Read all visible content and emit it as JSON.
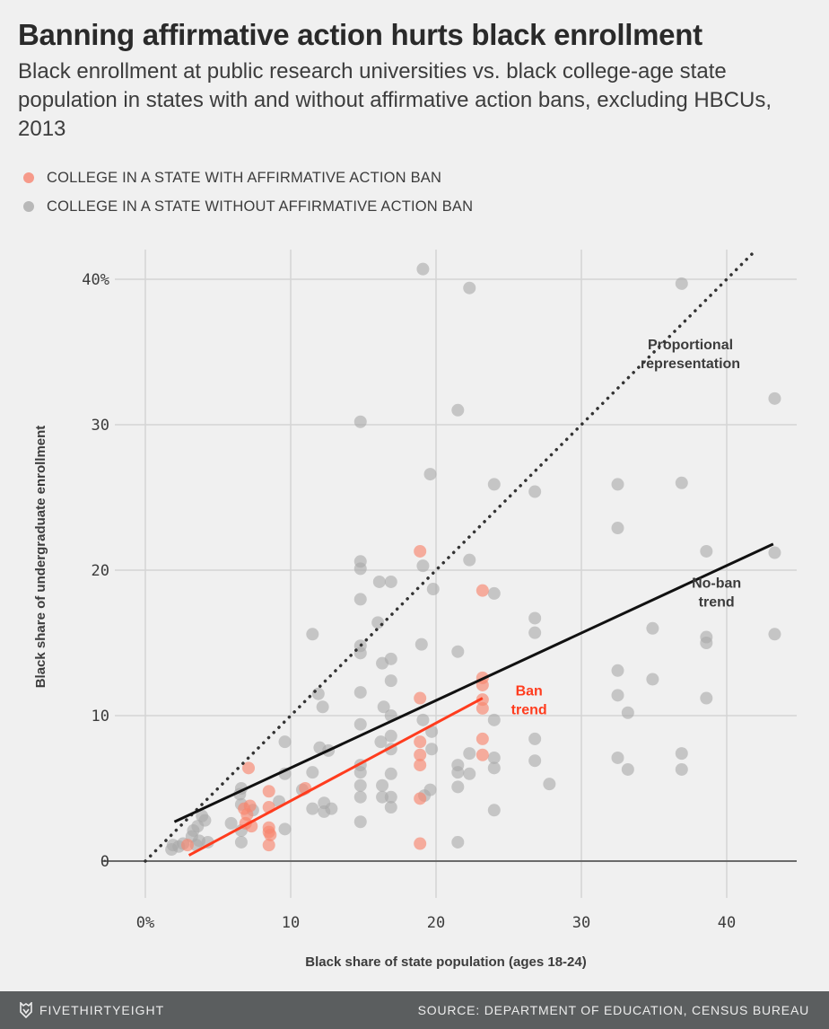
{
  "header": {
    "title": "Banning affirmative action hurts black enrollment",
    "subtitle": "Black enrollment at public research universities vs. black college-age state population in states with and without affirmative action bans, excluding HBCUs, 2013"
  },
  "legend": [
    {
      "label": "COLLEGE IN A STATE WITH AFFIRMATIVE ACTION BAN",
      "color": "#f69a8a"
    },
    {
      "label": "COLLEGE IN A STATE WITHOUT AFFIRMATIVE ACTION BAN",
      "color": "#b8b8b8"
    }
  ],
  "footer": {
    "brand": "FIVETHIRTYEIGHT",
    "source": "SOURCE: DEPARTMENT OF EDUCATION, CENSUS BUREAU"
  },
  "colors": {
    "ban": "#ff3c1e",
    "ban_point": "#f8866f",
    "noban_point": "#a9a9a9",
    "noban_trend": "#111111",
    "grid": "#d4d4d4",
    "text": "#3c3c3c"
  },
  "chart_data": {
    "type": "scatter",
    "title": "Banning affirmative action hurts black enrollment",
    "xlabel": "Black share of state population (ages 18-24)",
    "ylabel": "Black share of undergraduate enrollment",
    "xlim": [
      -2,
      45
    ],
    "ylim": [
      -3,
      42
    ],
    "x_ticks": [
      0,
      10,
      20,
      30,
      40
    ],
    "x_tick_labels": [
      "0%",
      "10",
      "20",
      "30",
      "40"
    ],
    "y_ticks": [
      0,
      10,
      20,
      30,
      40
    ],
    "y_tick_labels": [
      "0",
      "10",
      "20",
      "30",
      "40%"
    ],
    "grid": true,
    "legend_position": "top-left",
    "series": [
      {
        "name": "College in a state with affirmative action ban",
        "points": [
          [
            2.9,
            1.1
          ],
          [
            7.1,
            6.4
          ],
          [
            6.8,
            3.6
          ],
          [
            7.0,
            3.2
          ],
          [
            7.2,
            3.8
          ],
          [
            6.9,
            2.6
          ],
          [
            7.3,
            2.4
          ],
          [
            8.5,
            4.8
          ],
          [
            8.5,
            3.7
          ],
          [
            8.5,
            2.3
          ],
          [
            8.5,
            2.0
          ],
          [
            8.6,
            1.8
          ],
          [
            8.5,
            1.1
          ],
          [
            11.0,
            5.0
          ],
          [
            18.9,
            21.3
          ],
          [
            18.9,
            11.2
          ],
          [
            18.9,
            8.2
          ],
          [
            18.9,
            7.3
          ],
          [
            18.9,
            6.6
          ],
          [
            18.9,
            4.3
          ],
          [
            18.9,
            1.2
          ],
          [
            23.2,
            18.6
          ],
          [
            23.2,
            12.6
          ],
          [
            23.2,
            12.1
          ],
          [
            23.2,
            11.1
          ],
          [
            23.2,
            10.5
          ],
          [
            23.2,
            8.4
          ],
          [
            23.2,
            7.3
          ]
        ]
      },
      {
        "name": "College in a state without affirmative action ban",
        "points": [
          [
            1.8,
            0.8
          ],
          [
            1.9,
            1.1
          ],
          [
            2.3,
            1.0
          ],
          [
            2.6,
            1.2
          ],
          [
            3.2,
            1.7
          ],
          [
            3.3,
            2.1
          ],
          [
            3.6,
            2.4
          ],
          [
            3.7,
            1.4
          ],
          [
            3.9,
            3.1
          ],
          [
            4.1,
            2.8
          ],
          [
            4.3,
            1.3
          ],
          [
            3.5,
            1.1
          ],
          [
            5.9,
            2.6
          ],
          [
            6.5,
            4.6
          ],
          [
            6.6,
            5.0
          ],
          [
            6.6,
            3.9
          ],
          [
            6.6,
            2.1
          ],
          [
            6.6,
            1.3
          ],
          [
            7.4,
            3.5
          ],
          [
            9.2,
            4.1
          ],
          [
            9.6,
            8.2
          ],
          [
            9.6,
            6.0
          ],
          [
            9.6,
            2.2
          ],
          [
            10.8,
            4.9
          ],
          [
            11.5,
            15.6
          ],
          [
            11.5,
            6.1
          ],
          [
            11.9,
            11.5
          ],
          [
            12.0,
            7.8
          ],
          [
            12.2,
            10.6
          ],
          [
            12.3,
            4.0
          ],
          [
            12.3,
            3.4
          ],
          [
            12.6,
            7.6
          ],
          [
            12.8,
            3.6
          ],
          [
            11.5,
            3.6
          ],
          [
            14.8,
            30.2
          ],
          [
            14.8,
            20.6
          ],
          [
            14.8,
            20.1
          ],
          [
            14.8,
            18.0
          ],
          [
            14.8,
            14.8
          ],
          [
            14.8,
            14.3
          ],
          [
            14.8,
            11.6
          ],
          [
            14.8,
            9.4
          ],
          [
            14.8,
            6.6
          ],
          [
            14.8,
            6.1
          ],
          [
            14.8,
            5.2
          ],
          [
            14.8,
            4.4
          ],
          [
            14.8,
            2.7
          ],
          [
            16.1,
            19.2
          ],
          [
            16.0,
            16.4
          ],
          [
            16.2,
            8.2
          ],
          [
            16.3,
            13.6
          ],
          [
            16.3,
            5.2
          ],
          [
            16.3,
            4.4
          ],
          [
            16.4,
            10.6
          ],
          [
            16.9,
            19.2
          ],
          [
            16.9,
            13.9
          ],
          [
            16.9,
            12.4
          ],
          [
            16.9,
            10.0
          ],
          [
            16.9,
            8.6
          ],
          [
            16.9,
            7.7
          ],
          [
            16.9,
            6.0
          ],
          [
            16.9,
            4.4
          ],
          [
            16.9,
            3.7
          ],
          [
            19.1,
            40.7
          ],
          [
            19.1,
            20.3
          ],
          [
            19.0,
            14.9
          ],
          [
            19.1,
            9.7
          ],
          [
            19.2,
            4.5
          ],
          [
            19.6,
            26.6
          ],
          [
            19.8,
            18.7
          ],
          [
            19.7,
            8.9
          ],
          [
            19.7,
            7.7
          ],
          [
            19.6,
            4.9
          ],
          [
            21.5,
            31.0
          ],
          [
            21.5,
            14.4
          ],
          [
            21.5,
            6.6
          ],
          [
            21.5,
            6.1
          ],
          [
            21.5,
            5.1
          ],
          [
            21.5,
            1.3
          ],
          [
            22.3,
            39.4
          ],
          [
            22.3,
            20.7
          ],
          [
            22.3,
            7.4
          ],
          [
            22.3,
            6.0
          ],
          [
            24.0,
            25.9
          ],
          [
            24.0,
            18.4
          ],
          [
            24.0,
            9.7
          ],
          [
            24.0,
            7.1
          ],
          [
            24.0,
            6.4
          ],
          [
            24.0,
            3.5
          ],
          [
            26.8,
            25.4
          ],
          [
            26.8,
            16.7
          ],
          [
            26.8,
            15.7
          ],
          [
            26.8,
            8.4
          ],
          [
            26.8,
            6.9
          ],
          [
            27.8,
            5.3
          ],
          [
            32.5,
            25.9
          ],
          [
            32.5,
            22.9
          ],
          [
            32.5,
            13.1
          ],
          [
            32.5,
            11.4
          ],
          [
            32.5,
            7.1
          ],
          [
            33.2,
            10.2
          ],
          [
            33.2,
            6.3
          ],
          [
            34.9,
            16.0
          ],
          [
            34.9,
            12.5
          ],
          [
            36.9,
            39.7
          ],
          [
            36.9,
            26.0
          ],
          [
            36.9,
            7.4
          ],
          [
            36.9,
            6.3
          ],
          [
            38.6,
            21.3
          ],
          [
            38.6,
            15.4
          ],
          [
            38.6,
            15.0
          ],
          [
            38.6,
            11.2
          ],
          [
            43.3,
            31.8
          ],
          [
            43.3,
            21.2
          ],
          [
            43.3,
            15.6
          ]
        ]
      }
    ],
    "lines": [
      {
        "name": "Proportional representation",
        "style": "dotted",
        "points": [
          [
            0,
            0
          ],
          [
            42,
            42
          ]
        ]
      },
      {
        "name": "No-ban trend",
        "style": "solid",
        "points": [
          [
            2,
            2.7
          ],
          [
            43.2,
            21.8
          ]
        ]
      },
      {
        "name": "Ban trend",
        "style": "solid",
        "points": [
          [
            3,
            0.4
          ],
          [
            23.2,
            11.2
          ]
        ]
      }
    ],
    "annotations": [
      {
        "text_lines": [
          "Proportional",
          "representation"
        ],
        "at": [
          37.5,
          35.2
        ],
        "color": "#3c3c3c"
      },
      {
        "text_lines": [
          "No-ban",
          "trend"
        ],
        "at": [
          39.3,
          18.8
        ],
        "color": "#3c3c3c"
      },
      {
        "text_lines": [
          "Ban",
          "trend"
        ],
        "at": [
          26.4,
          11.4
        ],
        "color": "#ff3c1e"
      }
    ]
  }
}
